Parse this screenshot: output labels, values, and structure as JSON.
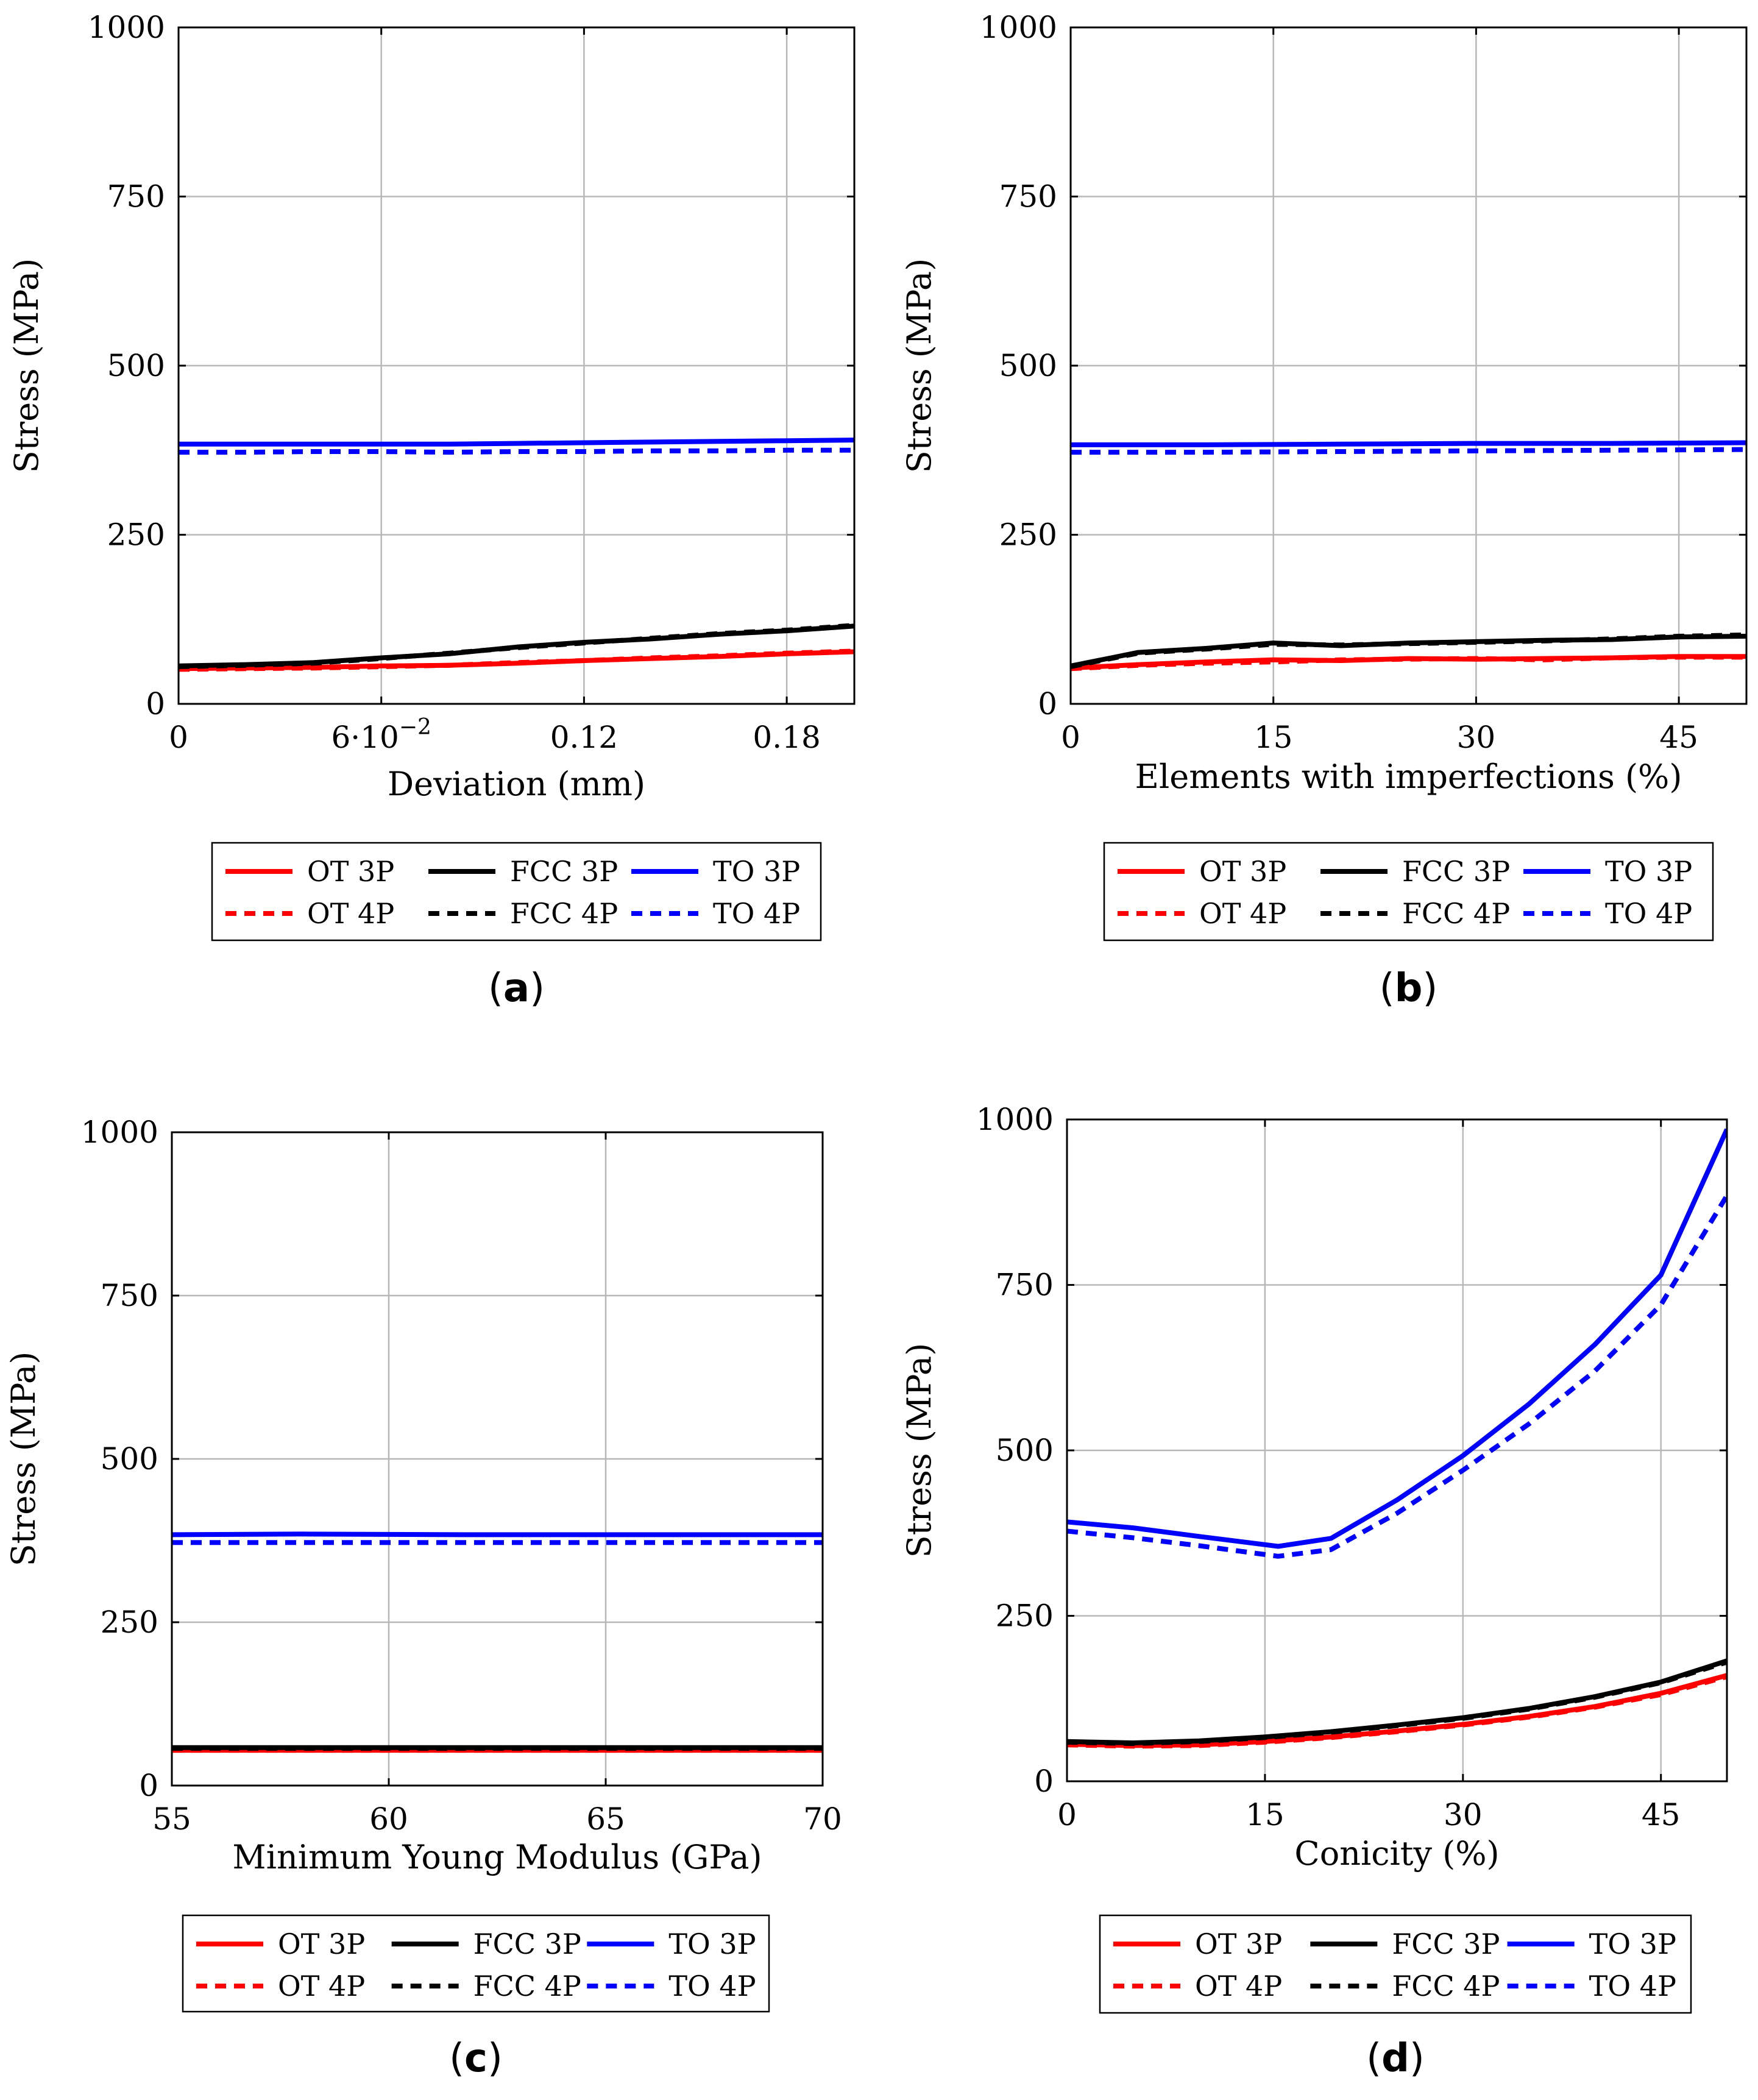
{
  "chart_data": [
    {
      "type": "line",
      "panel_label": "a",
      "xlabel": "Deviation (mm)",
      "ylabel": "Stress (MPa)",
      "xlim": [
        0,
        0.2
      ],
      "ylim": [
        0,
        1000
      ],
      "xticks": [
        0,
        0.06,
        0.12,
        0.18
      ],
      "xtick_labels": [
        "0",
        "6·10",
        "0.12",
        "0.18"
      ],
      "xtick_exponent": "−2",
      "yticks": [
        0,
        250,
        500,
        750,
        1000
      ],
      "ytick_labels": [
        "0",
        "250",
        "500",
        "750",
        "1000"
      ],
      "grid": true,
      "legend_position": "below",
      "series": [
        {
          "name": "OT 3P",
          "color": "#ff0000",
          "dash": "solid",
          "x": [
            0,
            0.02,
            0.04,
            0.06,
            0.08,
            0.1,
            0.12,
            0.14,
            0.16,
            0.18,
            0.2
          ],
          "y": [
            52,
            53,
            54,
            56,
            57,
            60,
            64,
            67,
            70,
            74,
            77
          ]
        },
        {
          "name": "FCC 3P",
          "color": "#000000",
          "dash": "solid",
          "x": [
            0,
            0.02,
            0.04,
            0.06,
            0.08,
            0.1,
            0.12,
            0.14,
            0.16,
            0.18,
            0.2
          ],
          "y": [
            56,
            58,
            61,
            68,
            74,
            84,
            91,
            96,
            103,
            108,
            115
          ]
        },
        {
          "name": "TO 3P",
          "color": "#0000ff",
          "dash": "solid",
          "x": [
            0,
            0.02,
            0.04,
            0.06,
            0.08,
            0.1,
            0.12,
            0.14,
            0.16,
            0.18,
            0.2
          ],
          "y": [
            384,
            384,
            384,
            384,
            384,
            385,
            386,
            387,
            388,
            389,
            390
          ]
        },
        {
          "name": "OT 4P",
          "color": "#ff0000",
          "dash": "dashed",
          "x": [
            0,
            0.02,
            0.04,
            0.06,
            0.08,
            0.1,
            0.12,
            0.14,
            0.16,
            0.18,
            0.2
          ],
          "y": [
            51,
            52,
            53,
            55,
            57,
            61,
            64,
            68,
            71,
            75,
            78
          ]
        },
        {
          "name": "FCC 4P",
          "color": "#000000",
          "dash": "dashed",
          "x": [
            0,
            0.02,
            0.04,
            0.06,
            0.08,
            0.1,
            0.12,
            0.14,
            0.16,
            0.18,
            0.2
          ],
          "y": [
            55,
            57,
            60,
            67,
            75,
            83,
            90,
            97,
            104,
            109,
            116
          ]
        },
        {
          "name": "TO 4P",
          "color": "#0000ff",
          "dash": "dashed",
          "x": [
            0,
            0.02,
            0.04,
            0.06,
            0.08,
            0.1,
            0.12,
            0.14,
            0.16,
            0.18,
            0.2
          ],
          "y": [
            372,
            372,
            373,
            373,
            372,
            373,
            373,
            374,
            374,
            375,
            375
          ]
        }
      ]
    },
    {
      "type": "line",
      "panel_label": "b",
      "xlabel": "Elements with imperfections (%)",
      "ylabel": "Stress (MPa)",
      "xlim": [
        0,
        50
      ],
      "ylim": [
        0,
        1000
      ],
      "xticks": [
        0,
        15,
        30,
        45
      ],
      "xtick_labels": [
        "0",
        "15",
        "30",
        "45"
      ],
      "yticks": [
        0,
        250,
        500,
        750,
        1000
      ],
      "ytick_labels": [
        "0",
        "250",
        "500",
        "750",
        "1000"
      ],
      "grid": true,
      "legend_position": "below",
      "series": [
        {
          "name": "OT 3P",
          "color": "#ff0000",
          "dash": "solid",
          "x": [
            0,
            5,
            10,
            15,
            20,
            25,
            30,
            35,
            40,
            45,
            50
          ],
          "y": [
            53,
            58,
            62,
            65,
            64,
            67,
            66,
            67,
            68,
            70,
            70
          ]
        },
        {
          "name": "FCC 3P",
          "color": "#000000",
          "dash": "solid",
          "x": [
            0,
            3,
            5,
            10,
            15,
            20,
            25,
            30,
            35,
            40,
            45,
            50
          ],
          "y": [
            56,
            68,
            76,
            82,
            90,
            86,
            90,
            92,
            94,
            95,
            99,
            100
          ]
        },
        {
          "name": "TO 3P",
          "color": "#0000ff",
          "dash": "solid",
          "x": [
            0,
            10,
            20,
            30,
            40,
            50
          ],
          "y": [
            383,
            383,
            384,
            385,
            385,
            386
          ]
        },
        {
          "name": "OT 4P",
          "color": "#ff0000",
          "dash": "dashed",
          "x": [
            0,
            5,
            10,
            15,
            20,
            25,
            30,
            35,
            40,
            45,
            50
          ],
          "y": [
            52,
            57,
            60,
            62,
            65,
            66,
            67,
            65,
            68,
            69,
            69
          ]
        },
        {
          "name": "FCC 4P",
          "color": "#000000",
          "dash": "dashed",
          "x": [
            0,
            3,
            5,
            10,
            15,
            20,
            25,
            30,
            35,
            40,
            45,
            50
          ],
          "y": [
            55,
            67,
            75,
            81,
            88,
            87,
            89,
            91,
            93,
            96,
            100,
            102
          ]
        },
        {
          "name": "TO 4P",
          "color": "#0000ff",
          "dash": "dashed",
          "x": [
            0,
            10,
            20,
            30,
            40,
            50
          ],
          "y": [
            372,
            372,
            373,
            374,
            375,
            376
          ]
        }
      ]
    },
    {
      "type": "line",
      "panel_label": "c",
      "xlabel": "Minimum Young Modulus (GPa)",
      "ylabel": "Stress (MPa)",
      "xlim": [
        55,
        70
      ],
      "ylim": [
        0,
        1000
      ],
      "xticks": [
        55,
        60,
        65,
        70
      ],
      "xtick_labels": [
        "55",
        "60",
        "65",
        "70"
      ],
      "yticks": [
        0,
        250,
        500,
        750,
        1000
      ],
      "ytick_labels": [
        "0",
        "250",
        "500",
        "750",
        "1000"
      ],
      "grid": true,
      "legend_position": "below",
      "series": [
        {
          "name": "OT 3P",
          "color": "#ff0000",
          "dash": "solid",
          "x": [
            55,
            60,
            65,
            70
          ],
          "y": [
            54,
            54,
            54,
            54
          ]
        },
        {
          "name": "FCC 3P",
          "color": "#000000",
          "dash": "solid",
          "x": [
            55,
            60,
            65,
            70
          ],
          "y": [
            58,
            58,
            58,
            58
          ]
        },
        {
          "name": "TO 3P",
          "color": "#0000ff",
          "dash": "solid",
          "x": [
            55,
            58,
            62,
            66,
            70
          ],
          "y": [
            384,
            385,
            384,
            384,
            384
          ]
        },
        {
          "name": "OT 4P",
          "color": "#ff0000",
          "dash": "dashed",
          "x": [
            55,
            60,
            65,
            70
          ],
          "y": [
            54,
            54,
            54,
            54
          ]
        },
        {
          "name": "FCC 4P",
          "color": "#000000",
          "dash": "dashed",
          "x": [
            55,
            60,
            65,
            70
          ],
          "y": [
            57,
            57,
            57,
            57
          ]
        },
        {
          "name": "TO 4P",
          "color": "#0000ff",
          "dash": "dashed",
          "x": [
            55,
            60,
            65,
            70
          ],
          "y": [
            372,
            372,
            372,
            372
          ]
        }
      ]
    },
    {
      "type": "line",
      "panel_label": "d",
      "xlabel": "Conicity (%)",
      "ylabel": "Stress (MPa)",
      "xlim": [
        0,
        50
      ],
      "ylim": [
        0,
        1000
      ],
      "xticks": [
        0,
        15,
        30,
        45
      ],
      "xtick_labels": [
        "0",
        "15",
        "30",
        "45"
      ],
      "yticks": [
        0,
        250,
        500,
        750,
        1000
      ],
      "ytick_labels": [
        "0",
        "250",
        "500",
        "750",
        "1000"
      ],
      "grid": true,
      "legend_position": "below",
      "series": [
        {
          "name": "OT 3P",
          "color": "#ff0000",
          "dash": "solid",
          "x": [
            0,
            5,
            10,
            15,
            20,
            25,
            30,
            35,
            40,
            45,
            50
          ],
          "y": [
            56,
            54,
            55,
            60,
            67,
            76,
            86,
            98,
            113,
            133,
            160
          ]
        },
        {
          "name": "FCC 3P",
          "color": "#000000",
          "dash": "solid",
          "x": [
            0,
            5,
            10,
            15,
            20,
            25,
            30,
            35,
            40,
            45,
            50
          ],
          "y": [
            60,
            58,
            61,
            67,
            75,
            85,
            96,
            110,
            128,
            150,
            182
          ]
        },
        {
          "name": "TO 3P",
          "color": "#0000ff",
          "dash": "solid",
          "x": [
            0,
            5,
            10,
            16,
            20,
            25,
            30,
            35,
            40,
            45,
            50
          ],
          "y": [
            392,
            383,
            370,
            355,
            367,
            425,
            492,
            570,
            660,
            765,
            985
          ]
        },
        {
          "name": "OT 4P",
          "color": "#ff0000",
          "dash": "dashed",
          "x": [
            0,
            5,
            10,
            15,
            20,
            25,
            30,
            35,
            40,
            45,
            50
          ],
          "y": [
            55,
            53,
            54,
            59,
            66,
            75,
            85,
            97,
            112,
            131,
            158
          ]
        },
        {
          "name": "FCC 4P",
          "color": "#000000",
          "dash": "dashed",
          "x": [
            0,
            5,
            10,
            15,
            20,
            25,
            30,
            35,
            40,
            45,
            50
          ],
          "y": [
            59,
            57,
            60,
            66,
            74,
            84,
            95,
            109,
            127,
            149,
            180
          ]
        },
        {
          "name": "TO 4P",
          "color": "#0000ff",
          "dash": "dashed",
          "x": [
            0,
            5,
            10,
            16,
            20,
            25,
            30,
            35,
            40,
            45,
            50
          ],
          "y": [
            378,
            368,
            356,
            340,
            350,
            405,
            470,
            540,
            620,
            720,
            885
          ]
        }
      ]
    }
  ]
}
